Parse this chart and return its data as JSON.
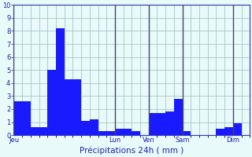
{
  "bar_values": [
    2.6,
    2.6,
    0.6,
    0.6,
    5.0,
    8.2,
    4.3,
    4.3,
    1.1,
    1.2,
    0.3,
    0.3,
    0.5,
    0.5,
    0.3,
    0.0,
    1.7,
    1.7,
    1.8,
    2.8,
    0.3,
    0.0,
    0.0,
    0.0,
    0.5,
    0.6,
    0.9,
    0.0
  ],
  "day_labels": [
    "Jeu",
    "Lun",
    "Ven",
    "Sam",
    "Dim"
  ],
  "day_sep_positions": [
    0,
    12,
    16,
    20,
    26
  ],
  "xlabel": "Précipitations 24h ( mm )",
  "ylim": [
    0,
    10
  ],
  "yticks": [
    0,
    1,
    2,
    3,
    4,
    5,
    6,
    7,
    8,
    9,
    10
  ],
  "bar_color": "#1a1aff",
  "background_color": "#e8fafa",
  "grid_color": "#aacccc",
  "axis_color": "#3333bb",
  "text_color": "#2222aa",
  "vline_color": "#444466",
  "grid_major_color": "#99bbbb"
}
